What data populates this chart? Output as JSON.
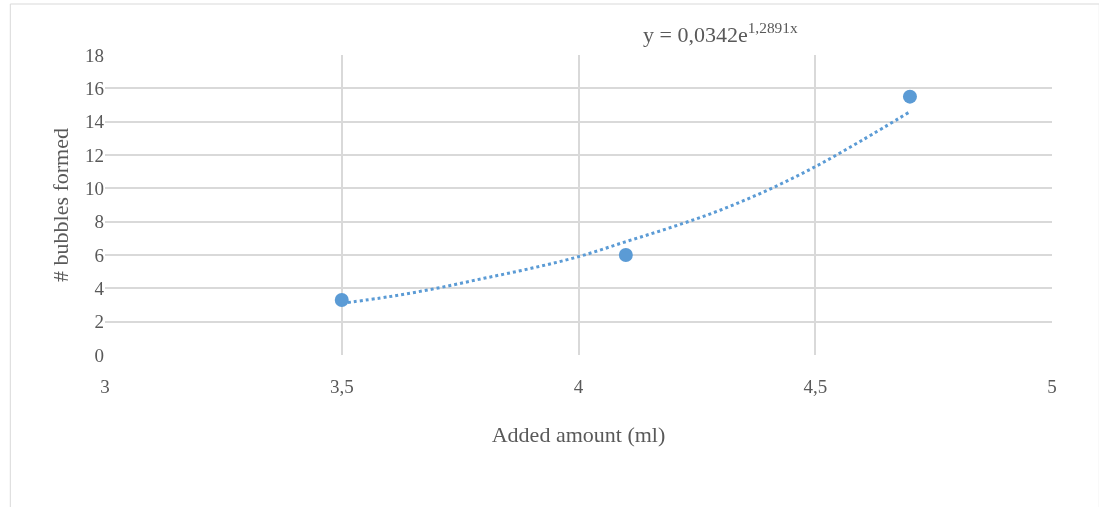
{
  "chart_data": {
    "type": "scatter",
    "xlabel": "Added amount (ml)",
    "ylabel": "# bubbles formed",
    "xlim": [
      3,
      5
    ],
    "xticks": [
      {
        "value": 3,
        "label": "3"
      },
      {
        "value": 3.5,
        "label": "3,5"
      },
      {
        "value": 4,
        "label": "4"
      },
      {
        "value": 4.5,
        "label": "4,5"
      },
      {
        "value": 5,
        "label": "5"
      }
    ],
    "ylim": [
      0,
      18
    ],
    "yticks": [
      0,
      2,
      4,
      6,
      8,
      10,
      12,
      14,
      16,
      18
    ],
    "grid": true,
    "annotations": [
      "y = 0,0342e$^{1,2891x}$"
    ],
    "series": [
      {
        "color": "#5b9bd5",
        "marker": "circle",
        "x": [
          3.5,
          4.1,
          4.7
        ],
        "values": [
          3.3,
          6.0,
          15.5
        ]
      },
      {
        "type": "line",
        "color": "#5b9bd5",
        "line_style": "dotted",
        "marker": "none",
        "x": [
          3.5,
          3.6,
          3.7,
          3.8,
          3.9,
          4.0,
          4.1,
          4.2,
          4.3,
          4.4,
          4.5,
          4.6,
          4.7
        ],
        "values": [
          3.1,
          3.5,
          4.0,
          4.6,
          5.2,
          5.9,
          6.8,
          7.7,
          8.7,
          9.9,
          11.3,
          12.9,
          14.6
        ]
      }
    ]
  }
}
